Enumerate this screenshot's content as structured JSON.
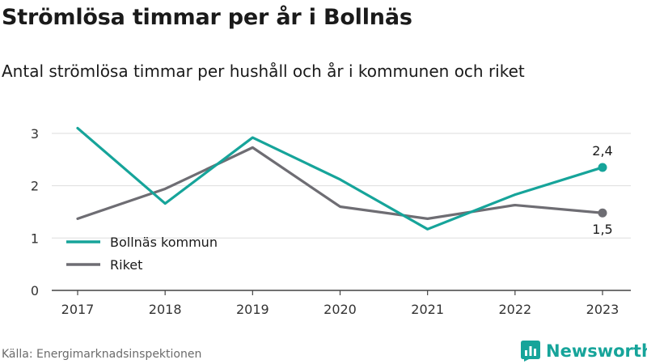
{
  "header": {
    "title": "Strömlösa timmar per år i Bollnäs",
    "subtitle": "Antal strömlösa timmar per hushåll och år i kommunen och riket"
  },
  "footer": {
    "source": "Källa: Energimarknadsinspektionen",
    "brand": "Newsworthy",
    "brand_icon": "newsworthy-logo-icon",
    "brand_color": "#16a49a"
  },
  "chart_data": {
    "type": "line",
    "title": "Strömlösa timmar per år i Bollnäs",
    "subtitle": "Antal strömlösa timmar per hushåll och år i kommunen och riket",
    "x": [
      "2017",
      "2018",
      "2019",
      "2020",
      "2021",
      "2022",
      "2023"
    ],
    "yticks": [
      "0",
      "1",
      "2",
      "3"
    ],
    "ylim": [
      0,
      3.3
    ],
    "grid": true,
    "legend_position": "bottom-left",
    "series": [
      {
        "name": "Bollnäs kommun",
        "color": "#16a49a",
        "values": [
          3.1,
          1.66,
          2.92,
          2.12,
          1.17,
          1.83,
          2.35
        ],
        "end_label": "2,4"
      },
      {
        "name": "Riket",
        "color": "#6e6d73",
        "values": [
          1.37,
          1.94,
          2.73,
          1.6,
          1.37,
          1.63,
          1.48
        ],
        "end_label": "1,5"
      }
    ]
  }
}
